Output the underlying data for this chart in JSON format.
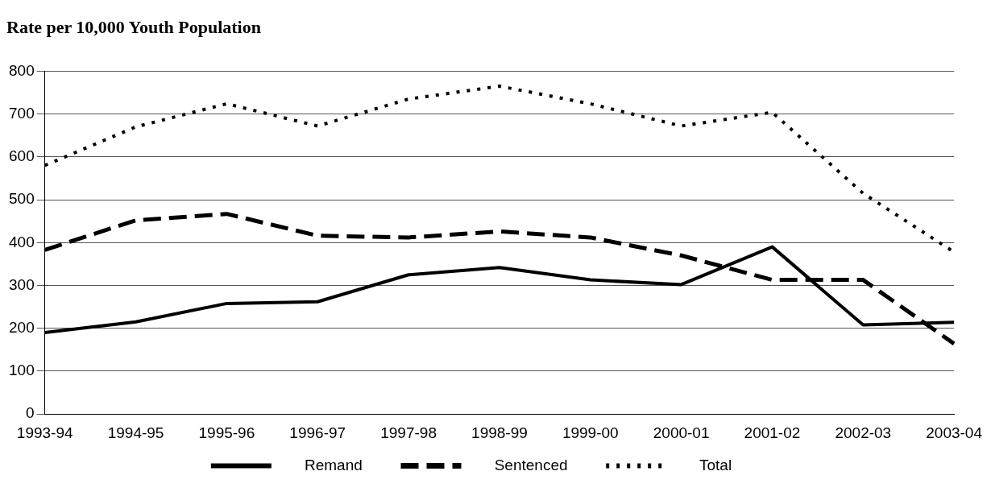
{
  "chart_data": {
    "type": "line",
    "title": "Rate per 10,000 Youth Population",
    "categories": [
      "1993-94",
      "1994-95",
      "1995-96",
      "1996-97",
      "1997-98",
      "1998-99",
      "1999-00",
      "2000-01",
      "2001-02",
      "2002-03",
      "2003-04"
    ],
    "series": [
      {
        "name": "Remand",
        "color": "#000000",
        "line_style": "solid",
        "values": [
          190,
          215,
          258,
          262,
          325,
          342,
          313,
          302,
          390,
          208,
          214
        ]
      },
      {
        "name": "Sentenced",
        "color": "#000000",
        "line_style": "dashed",
        "values": [
          383,
          452,
          467,
          416,
          412,
          426,
          412,
          370,
          313,
          313,
          164
        ]
      },
      {
        "name": "Total",
        "color": "#000000",
        "line_style": "dotted",
        "values": [
          580,
          670,
          724,
          672,
          735,
          765,
          724,
          672,
          704,
          515,
          378
        ]
      }
    ],
    "ylim": [
      0,
      800
    ],
    "yticks": [
      0,
      100,
      200,
      300,
      400,
      500,
      600,
      700,
      800
    ],
    "grid": "y",
    "legend": "bottom",
    "marker": "none"
  }
}
